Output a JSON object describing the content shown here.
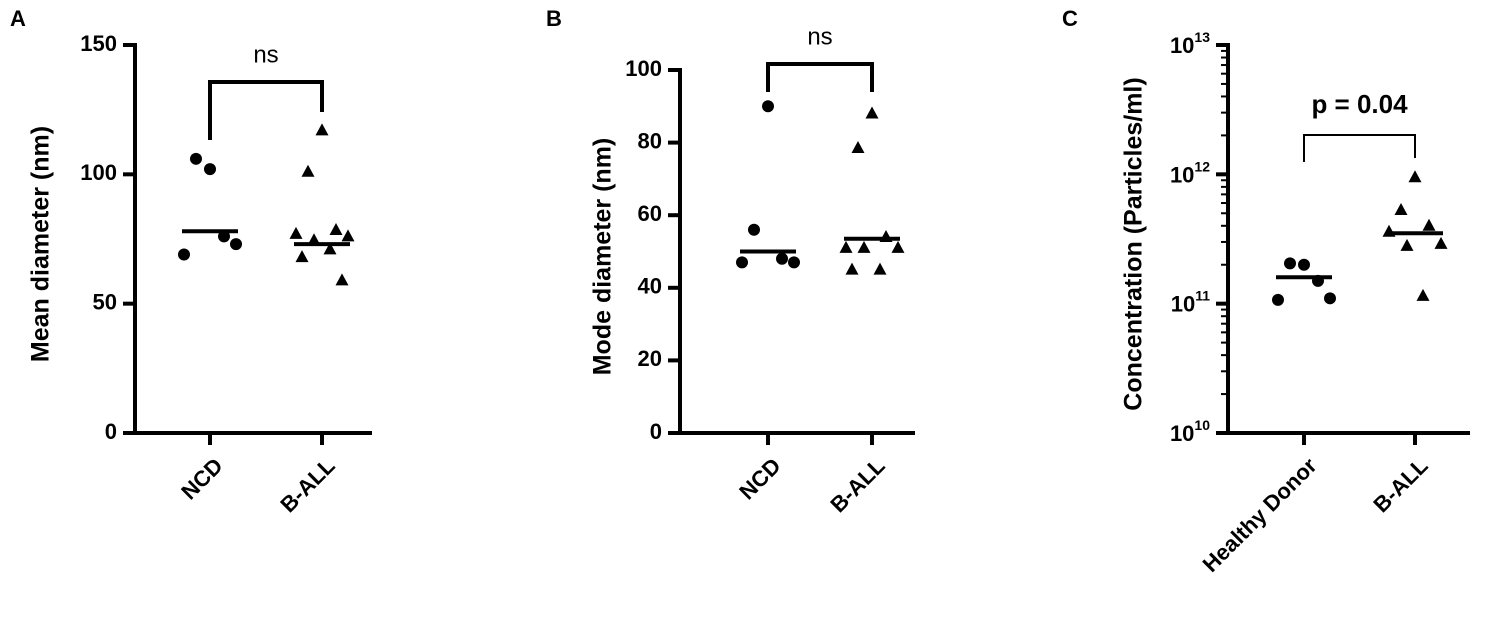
{
  "chart_data": [
    {
      "type": "strip",
      "panel_label": "A",
      "y_label": "Mean diameter (nm)",
      "categories": [
        "NCD",
        "B-ALL"
      ],
      "markers": [
        "circle",
        "triangle"
      ],
      "color": "#000000",
      "points": [
        [
          102,
          106,
          76,
          69,
          73
        ],
        [
          117,
          101,
          78.5,
          77,
          76,
          74.5,
          71,
          68,
          59
        ]
      ],
      "medians": [
        78,
        73
      ],
      "ylim": [
        0,
        150
      ],
      "yticks": [
        0,
        50,
        100,
        150
      ],
      "log": false,
      "annotation": "ns"
    },
    {
      "type": "strip",
      "panel_label": "B",
      "y_label": "Mode diameter (nm)",
      "categories": [
        "NCD",
        "B-ALL"
      ],
      "markers": [
        "circle",
        "triangle"
      ],
      "color": "#000000",
      "points": [
        [
          90,
          56,
          48,
          47,
          47
        ],
        [
          88,
          78.5,
          54,
          51,
          51,
          51,
          45,
          45
        ]
      ],
      "medians": [
        50,
        53.5
      ],
      "ylim": [
        0,
        100
      ],
      "yticks": [
        0,
        20,
        40,
        60,
        80,
        100
      ],
      "log": false,
      "annotation": "ns"
    },
    {
      "type": "strip",
      "panel_label": "C",
      "y_label": "Concentration (Particles/ml)",
      "categories": [
        "Healthy Donor",
        "B-ALL"
      ],
      "markers": [
        "circle",
        "triangle"
      ],
      "color": "#000000",
      "points": [
        [
          200000000000.0,
          205000000000.0,
          150000000000.0,
          107000000000.0,
          110000000000.0
        ],
        [
          950000000000.0,
          530000000000.0,
          400000000000.0,
          360000000000.0,
          290000000000.0,
          280000000000.0,
          115000000000.0
        ]
      ],
      "medians": [
        160000000000.0,
        350000000000.0
      ],
      "ylim": [
        10000000000.0,
        10000000000000.0
      ],
      "log": true,
      "yticks": [
        {
          "value": 10000000000.0,
          "label": "10",
          "sup": "10"
        },
        {
          "value": 100000000000.0,
          "label": "10",
          "sup": "11"
        },
        {
          "value": 1000000000000.0,
          "label": "10",
          "sup": "12"
        },
        {
          "value": 10000000000000.0,
          "label": "10",
          "sup": "13"
        }
      ],
      "annotation": "p = 0.04"
    }
  ]
}
